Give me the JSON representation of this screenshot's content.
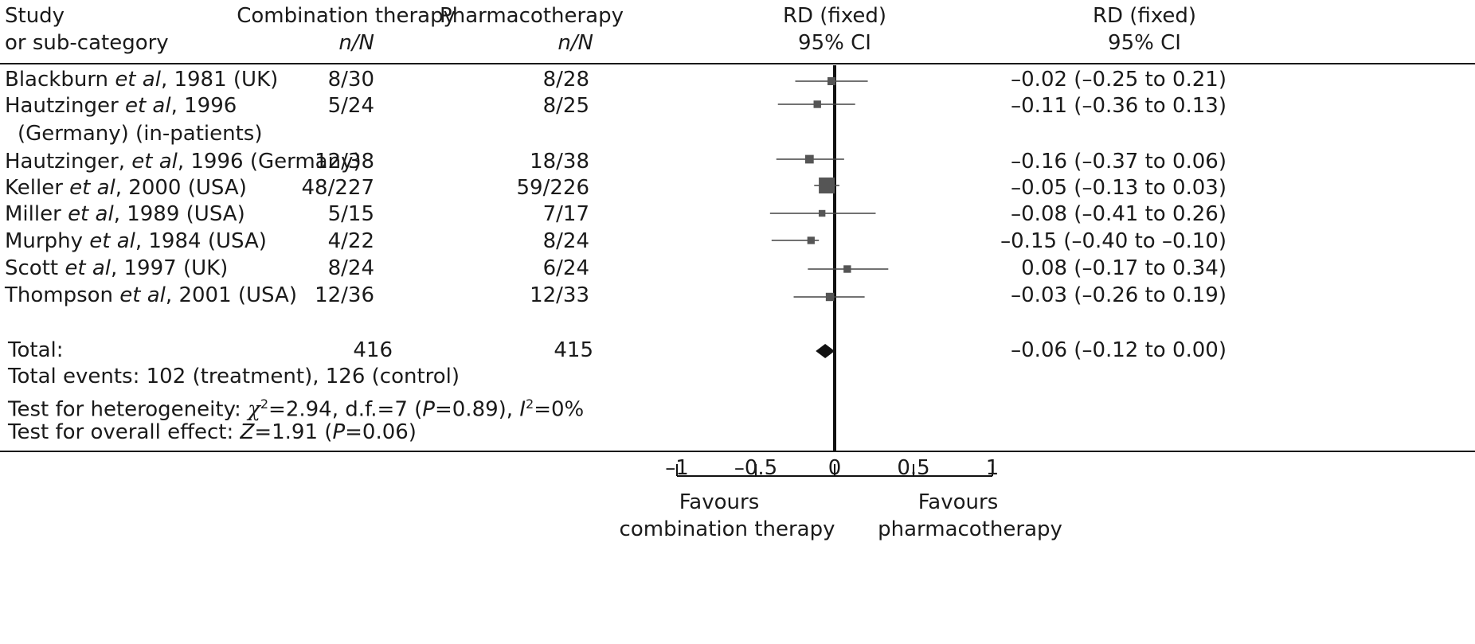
{
  "header": {
    "study": [
      "Study",
      "or sub-category"
    ],
    "combination": [
      "Combination therapy",
      "n/N"
    ],
    "pharmaco": [
      "Pharmacotherapy",
      "n/N"
    ],
    "rd_plot": [
      "RD (fixed)",
      "95% CI"
    ],
    "rd_text": [
      "RD (fixed)",
      "95% CI"
    ]
  },
  "studies": [
    {
      "name_a": "Blackburn ",
      "name_it": "et al",
      "name_b": ", 1981 (UK)",
      "name2": "",
      "combination": "8/30",
      "pharmaco": "8/28",
      "ci_text": "–0.02 (–0.25 to 0.21)"
    },
    {
      "name_a": "Hautzinger ",
      "name_it": "et al",
      "name_b": ", 1996",
      "name2": "(Germany) (in-patients)",
      "combination": "5/24",
      "pharmaco": "8/25",
      "ci_text": "–0.11 (–0.36 to 0.13)"
    },
    {
      "name_a": "Hautzinger, ",
      "name_it": "et al",
      "name_b": ", 1996 (Germany)",
      "name2": "",
      "combination": "12/38",
      "pharmaco": "18/38",
      "ci_text": "–0.16 (–0.37 to 0.06)"
    },
    {
      "name_a": "Keller ",
      "name_it": "et al",
      "name_b": ", 2000 (USA)",
      "name2": "",
      "combination": "48/227",
      "pharmaco": "59/226",
      "ci_text": "–0.05 (–0.13 to 0.03)"
    },
    {
      "name_a": "Miller ",
      "name_it": "et al",
      "name_b": ", 1989 (USA)",
      "name2": "",
      "combination": "5/15",
      "pharmaco": "7/17",
      "ci_text": "–0.08 (–0.41 to 0.26)"
    },
    {
      "name_a": "Murphy ",
      "name_it": "et al",
      "name_b": ", 1984 (USA)",
      "name2": "",
      "combination": "4/22",
      "pharmaco": "8/24",
      "ci_text": "–0.15 (–0.40 to –0.10)"
    },
    {
      "name_a": "Scott ",
      "name_it": "et al",
      "name_b": ", 1997 (UK)",
      "name2": "",
      "combination": "8/24",
      "pharmaco": "6/24",
      "ci_text": "0.08 (–0.17 to 0.34)"
    },
    {
      "name_a": "Thompson ",
      "name_it": "et al",
      "name_b": ", 2001 (USA)",
      "name2": "",
      "combination": "12/36",
      "pharmaco": "12/33",
      "ci_text": "–0.03 (–0.26 to 0.19)"
    }
  ],
  "total": {
    "label": "Total:",
    "combination": "416",
    "pharmaco": "415",
    "ci_text": "–0.06 (–0.12 to 0.00)",
    "events": "Total events: 102 (treatment), 126 (control)",
    "het_a": "Test for heterogeneity: ",
    "het_chi": "χ",
    "het_sup": "2",
    "het_b": "=2.94, d.f.=7 (",
    "het_p": "P",
    "het_c": "=0.89), ",
    "het_i": "I",
    "het_sup2": "2",
    "het_d": "=0%",
    "overall_a": "Test for overall effect: ",
    "overall_z": "Z",
    "overall_b": "=1.91 (",
    "overall_p": "P",
    "overall_c": "=0.06)"
  },
  "footer": {
    "favours_left": [
      "Favours",
      "combination therapy"
    ],
    "favours_right": [
      "Favours",
      "pharmacotherapy"
    ]
  },
  "chart_data": {
    "type": "forest",
    "measure": "RD (fixed)",
    "ci_level": "95% CI",
    "xlim": [
      -1,
      1
    ],
    "ticks": [
      -1,
      -0.5,
      0,
      0.5,
      1
    ],
    "tick_labels": [
      "–1",
      "–0.5",
      "0",
      "0.5",
      "1"
    ],
    "studies": [
      {
        "label": "Blackburn et al, 1981 (UK)",
        "rd": -0.02,
        "lo": -0.25,
        "hi": 0.21,
        "weight": 30
      },
      {
        "label": "Hautzinger et al, 1996 (Germany) (in-patients)",
        "rd": -0.11,
        "lo": -0.36,
        "hi": 0.13,
        "weight": 24
      },
      {
        "label": "Hautzinger, et al, 1996 (Germany)",
        "rd": -0.16,
        "lo": -0.37,
        "hi": 0.06,
        "weight": 38
      },
      {
        "label": "Keller et al, 2000 (USA)",
        "rd": -0.05,
        "lo": -0.13,
        "hi": 0.03,
        "weight": 226
      },
      {
        "label": "Miller et al, 1989 (USA)",
        "rd": -0.08,
        "lo": -0.41,
        "hi": 0.26,
        "weight": 16
      },
      {
        "label": "Murphy et al, 1984 (USA)",
        "rd": -0.15,
        "lo": -0.4,
        "hi": -0.1,
        "weight": 23
      },
      {
        "label": "Scott et al, 1997 (UK)",
        "rd": 0.08,
        "lo": -0.17,
        "hi": 0.34,
        "weight": 24
      },
      {
        "label": "Thompson et al, 2001 (USA)",
        "rd": -0.03,
        "lo": -0.26,
        "hi": 0.19,
        "weight": 34
      }
    ],
    "pooled": {
      "rd": -0.06,
      "lo": -0.12,
      "hi": 0.0
    }
  }
}
